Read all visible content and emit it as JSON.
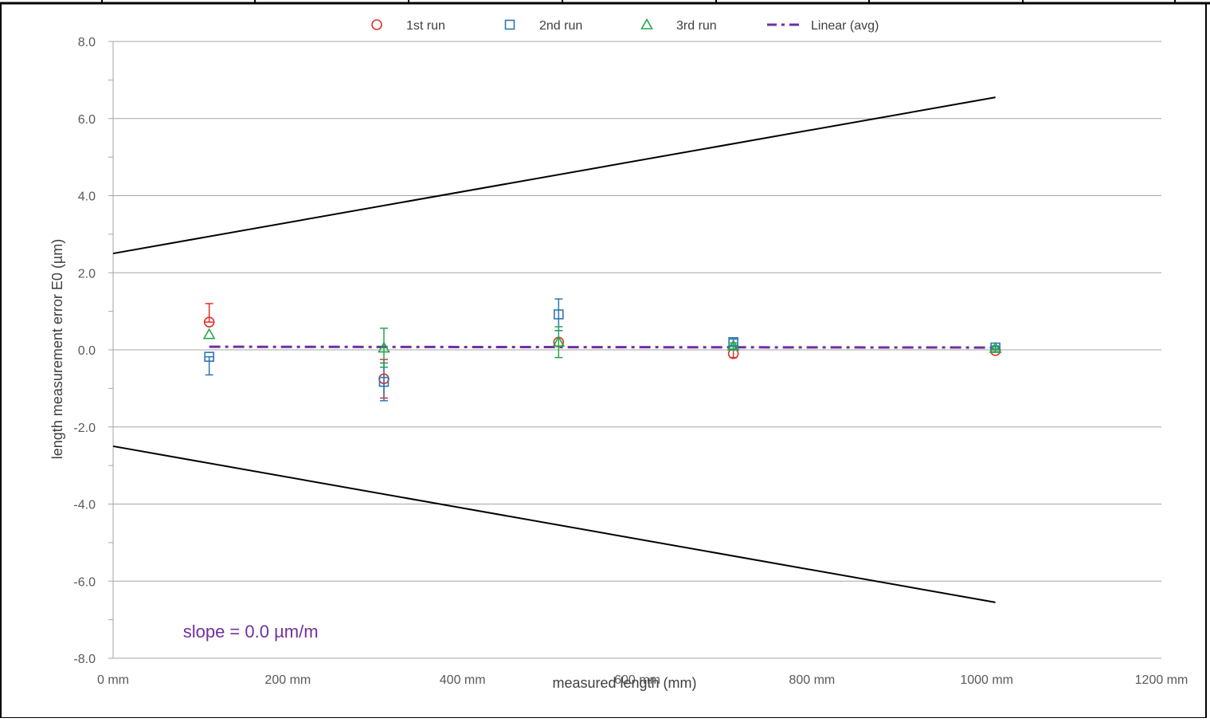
{
  "chart_data": {
    "type": "scatter",
    "xlabel": "measured length (mm)",
    "ylabel": "length measurement error E0 (µm)",
    "xlim": [
      0,
      1200
    ],
    "ylim": [
      -8,
      8
    ],
    "x_ticks": [
      0,
      200,
      400,
      600,
      800,
      1000,
      1200
    ],
    "x_tick_labels": [
      "0 mm",
      "200 mm",
      "400 mm",
      "600 mm",
      "800 mm",
      "1000 mm",
      "1200 mm"
    ],
    "y_ticks": [
      -8,
      -6,
      -4,
      -2,
      0,
      2,
      4,
      6,
      8
    ],
    "y_tick_labels": [
      "-8.0",
      "-6.0",
      "-4.0",
      "-2.0",
      "0.0",
      "2.0",
      "4.0",
      "6.0",
      "8.0"
    ],
    "grid": true,
    "legend_position": "top",
    "series": [
      {
        "name": "1st run",
        "marker": "circle",
        "color": "#e0302a",
        "x": [
          110,
          310,
          510,
          710,
          1010
        ],
        "y": [
          0.72,
          -0.75,
          0.2,
          -0.1,
          -0.02
        ],
        "err_low": [
          0.72,
          -1.25,
          0.2,
          -0.2,
          -0.05
        ],
        "err_high": [
          1.2,
          -0.25,
          0.2,
          0.0,
          0.02
        ]
      },
      {
        "name": "2nd run",
        "marker": "square",
        "color": "#2e75b6",
        "x": [
          110,
          310,
          510,
          710,
          1010
        ],
        "y": [
          -0.18,
          -0.83,
          0.92,
          0.2,
          0.06
        ],
        "err_low": [
          -0.65,
          -1.32,
          0.5,
          0.12,
          0.02
        ],
        "err_high": [
          -0.18,
          -0.34,
          1.32,
          0.28,
          0.1
        ]
      },
      {
        "name": "3rd run",
        "marker": "triangle",
        "color": "#22a84a",
        "x": [
          110,
          310,
          510,
          710,
          1010
        ],
        "y": [
          0.4,
          0.05,
          0.2,
          0.1,
          0.04
        ],
        "err_low": [
          0.4,
          -0.45,
          -0.2,
          0.02,
          0.0
        ],
        "err_high": [
          0.4,
          0.56,
          0.6,
          0.18,
          0.08
        ]
      }
    ],
    "trendline": {
      "name": "Linear (avg)",
      "color": "#7030a0",
      "style": "dash-dot",
      "x": [
        110,
        1010
      ],
      "y": [
        0.08,
        0.06
      ]
    },
    "limit_lines": {
      "color": "#000000",
      "upper": {
        "x": [
          0,
          1010
        ],
        "y": [
          2.5,
          6.55
        ]
      },
      "lower": {
        "x": [
          0,
          1010
        ],
        "y": [
          -2.5,
          -6.55
        ]
      }
    },
    "annotation": {
      "text": "slope =  0.0 µm/m",
      "color": "#7030a0",
      "x": 80,
      "y": -7.3
    }
  }
}
